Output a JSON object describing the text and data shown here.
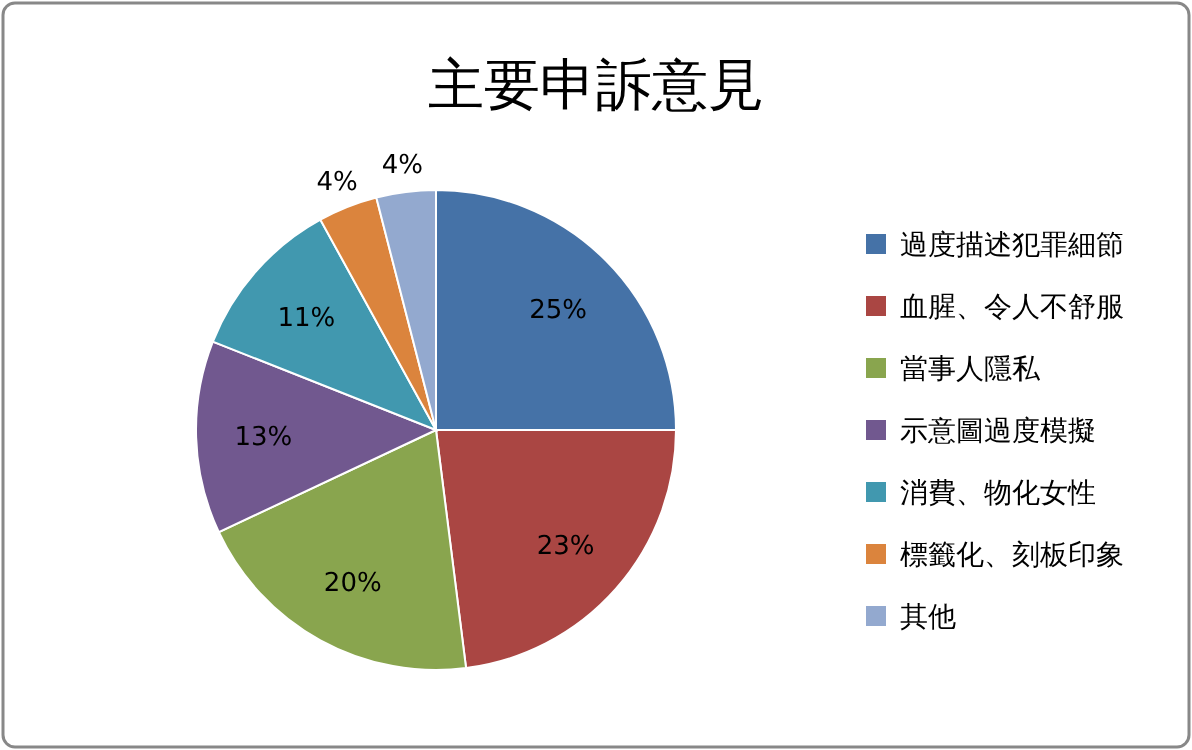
{
  "chart_data": {
    "type": "pie",
    "title": "主要申訴意見",
    "categories": [
      "過度描述犯罪細節",
      "血腥、令人不舒服",
      "當事人隱私",
      "示意圖過度模擬",
      "消費、物化女性",
      "標籤化、刻板印象",
      "其他"
    ],
    "values": [
      25,
      23,
      20,
      13,
      11,
      4,
      4
    ],
    "colors": [
      "#4572a7",
      "#aa4643",
      "#89a54e",
      "#71588f",
      "#4198af",
      "#db843d",
      "#93a9cf"
    ],
    "value_labels": [
      "25%",
      "23%",
      "20%",
      "13%",
      "11%",
      "4%",
      "4%"
    ],
    "legend": "right"
  }
}
